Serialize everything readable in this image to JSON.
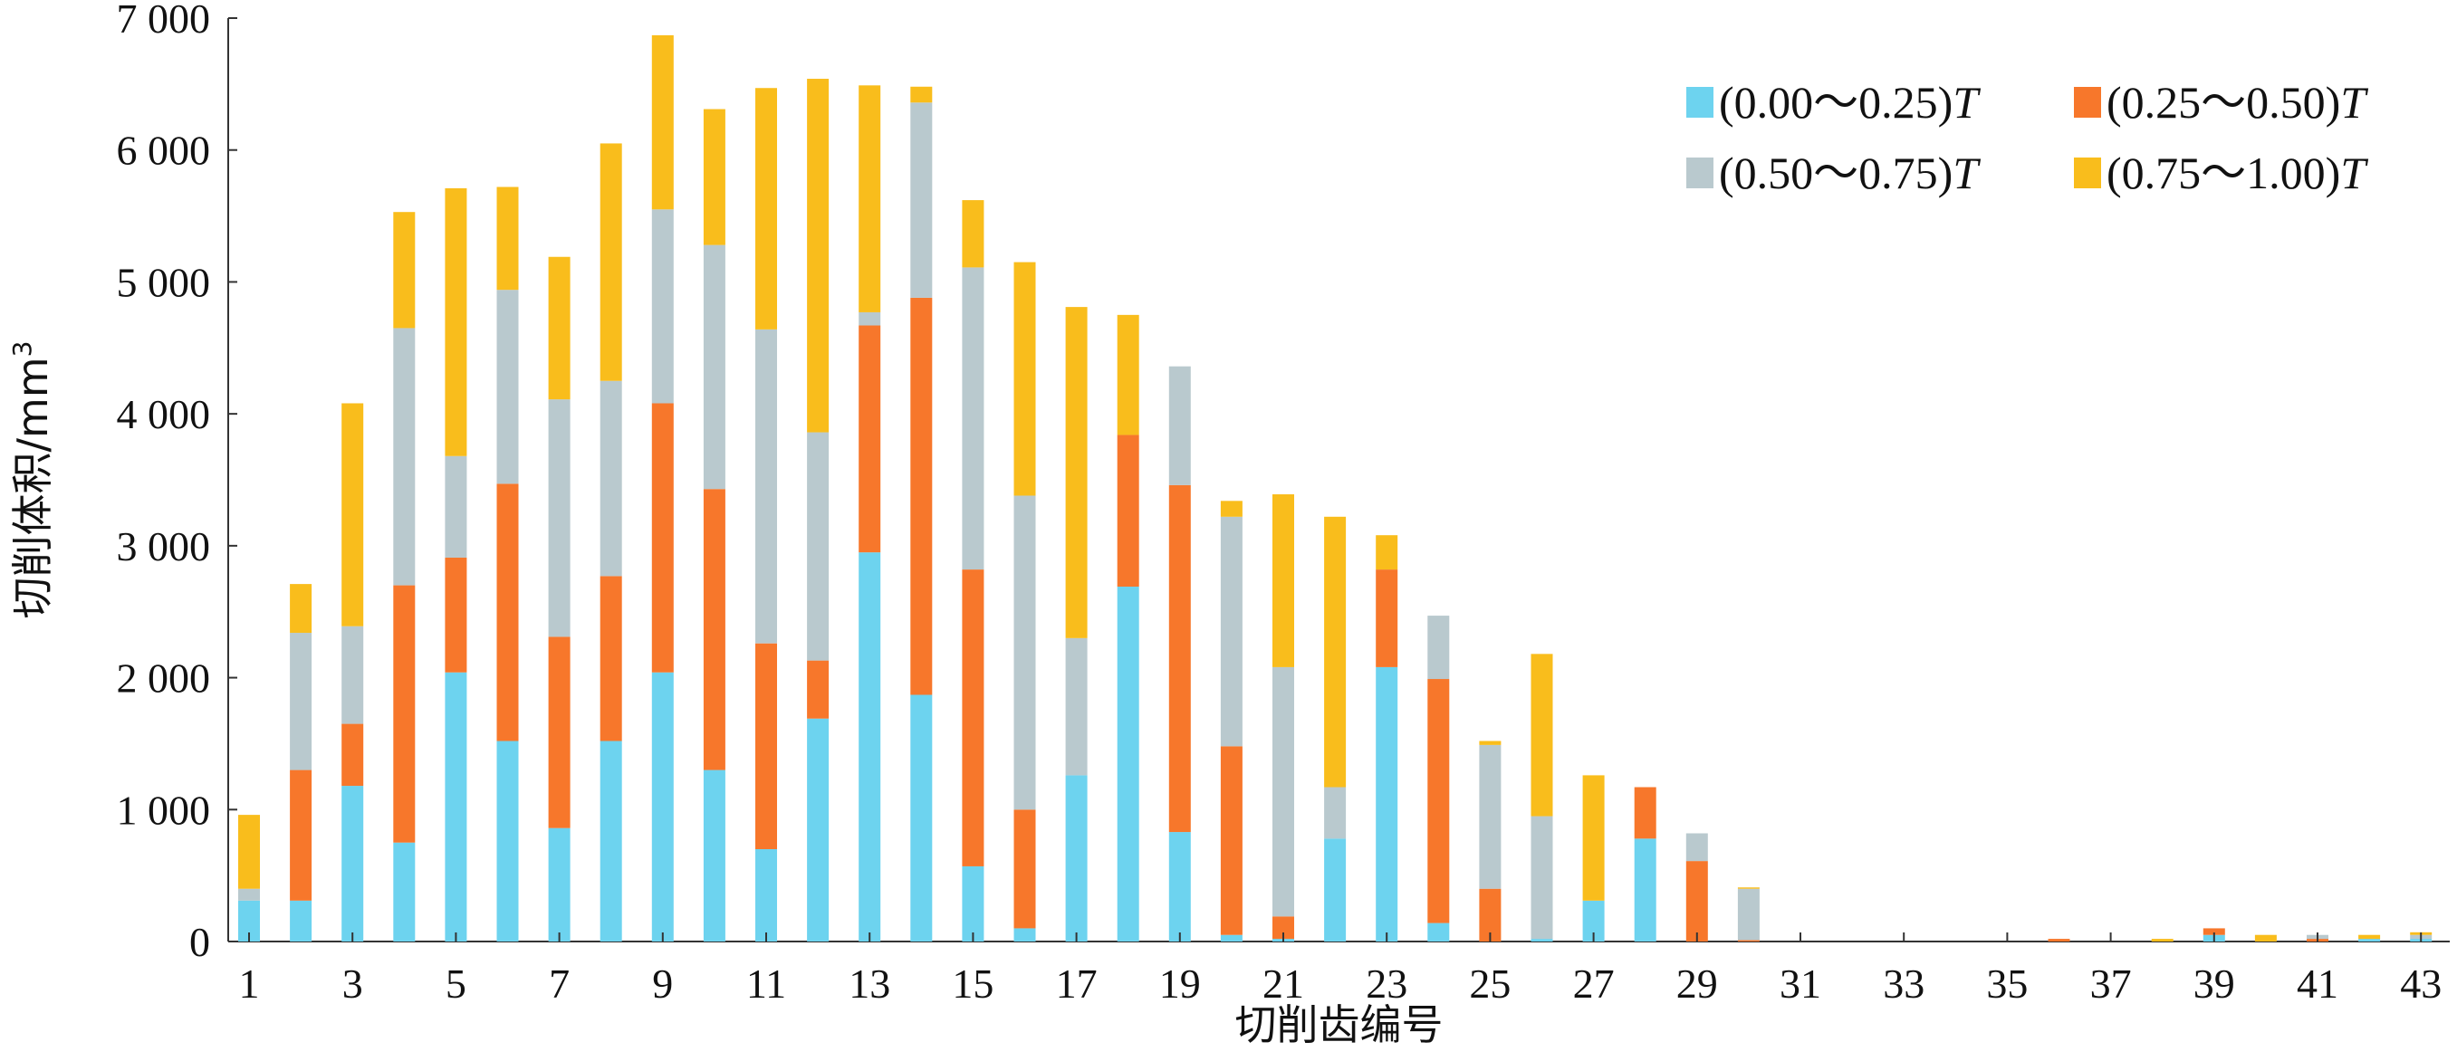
{
  "chart_data": {
    "type": "bar",
    "stacked": true,
    "xlabel": "切削齿编号",
    "ylabel": "切削体积/mm",
    "ylabel_superscript": "3",
    "ylim": [
      0,
      7000
    ],
    "yticks": [
      {
        "value": 0,
        "label": "0"
      },
      {
        "value": 1000,
        "label": "1 000"
      },
      {
        "value": 2000,
        "label": "2 000"
      },
      {
        "value": 3000,
        "label": "3 000"
      },
      {
        "value": 4000,
        "label": "4 000"
      },
      {
        "value": 5000,
        "label": "5 000"
      },
      {
        "value": 6000,
        "label": "6 000"
      },
      {
        "value": 7000,
        "label": "7 000"
      }
    ],
    "xticks": [
      "1",
      "3",
      "5",
      "7",
      "9",
      "11",
      "13",
      "15",
      "17",
      "19",
      "21",
      "23",
      "25",
      "27",
      "29",
      "31",
      "33",
      "35",
      "37",
      "39",
      "41",
      "43"
    ],
    "categories": [
      1,
      2,
      3,
      4,
      5,
      6,
      7,
      8,
      9,
      10,
      11,
      12,
      13,
      14,
      15,
      16,
      17,
      18,
      19,
      20,
      21,
      22,
      23,
      24,
      25,
      26,
      27,
      28,
      29,
      30,
      31,
      32,
      33,
      34,
      35,
      36,
      37,
      38,
      39,
      40,
      41,
      42,
      43
    ],
    "legend_position": "top-right",
    "series": [
      {
        "name": "(0.00～0.25)",
        "italic_suffix": "T",
        "color": "#6dd3ef",
        "values": [
          310,
          310,
          1180,
          750,
          2040,
          1520,
          860,
          1520,
          2040,
          1300,
          700,
          1690,
          2950,
          1870,
          570,
          100,
          1260,
          2690,
          830,
          50,
          20,
          780,
          2080,
          140,
          0,
          20,
          310,
          780,
          0,
          0,
          0,
          0,
          0,
          0,
          0,
          0,
          0,
          0,
          50,
          0,
          0,
          20,
          20
        ]
      },
      {
        "name": "(0.25～0.50)",
        "italic_suffix": "T",
        "color": "#f7772b",
        "values": [
          0,
          990,
          470,
          1950,
          870,
          1950,
          1450,
          1250,
          2040,
          2130,
          1560,
          440,
          1720,
          3010,
          2250,
          900,
          0,
          1150,
          2630,
          1430,
          170,
          0,
          740,
          1850,
          400,
          0,
          0,
          390,
          610,
          10,
          0,
          0,
          0,
          0,
          0,
          20,
          0,
          0,
          50,
          0,
          20,
          0,
          0
        ]
      },
      {
        "name": "(0.50～0.75)",
        "italic_suffix": "T",
        "color": "#b9c9ce",
        "values": [
          90,
          1040,
          740,
          1950,
          770,
          1470,
          1800,
          1480,
          1470,
          1850,
          2380,
          1730,
          100,
          1480,
          2290,
          2380,
          1040,
          0,
          900,
          1740,
          1890,
          390,
          0,
          480,
          1090,
          930,
          0,
          0,
          210,
          390,
          0,
          0,
          0,
          0,
          0,
          0,
          0,
          0,
          0,
          0,
          30,
          0,
          30
        ]
      },
      {
        "name": "(0.75～1.00)",
        "italic_suffix": "T",
        "color": "#f9bd1c",
        "values": [
          560,
          370,
          1690,
          880,
          2030,
          780,
          1080,
          1800,
          1320,
          1030,
          1830,
          2680,
          1720,
          120,
          510,
          1770,
          2510,
          910,
          0,
          120,
          1310,
          2050,
          260,
          0,
          30,
          1230,
          950,
          0,
          0,
          10,
          0,
          0,
          0,
          0,
          0,
          0,
          0,
          20,
          0,
          50,
          0,
          30,
          20
        ]
      }
    ]
  }
}
